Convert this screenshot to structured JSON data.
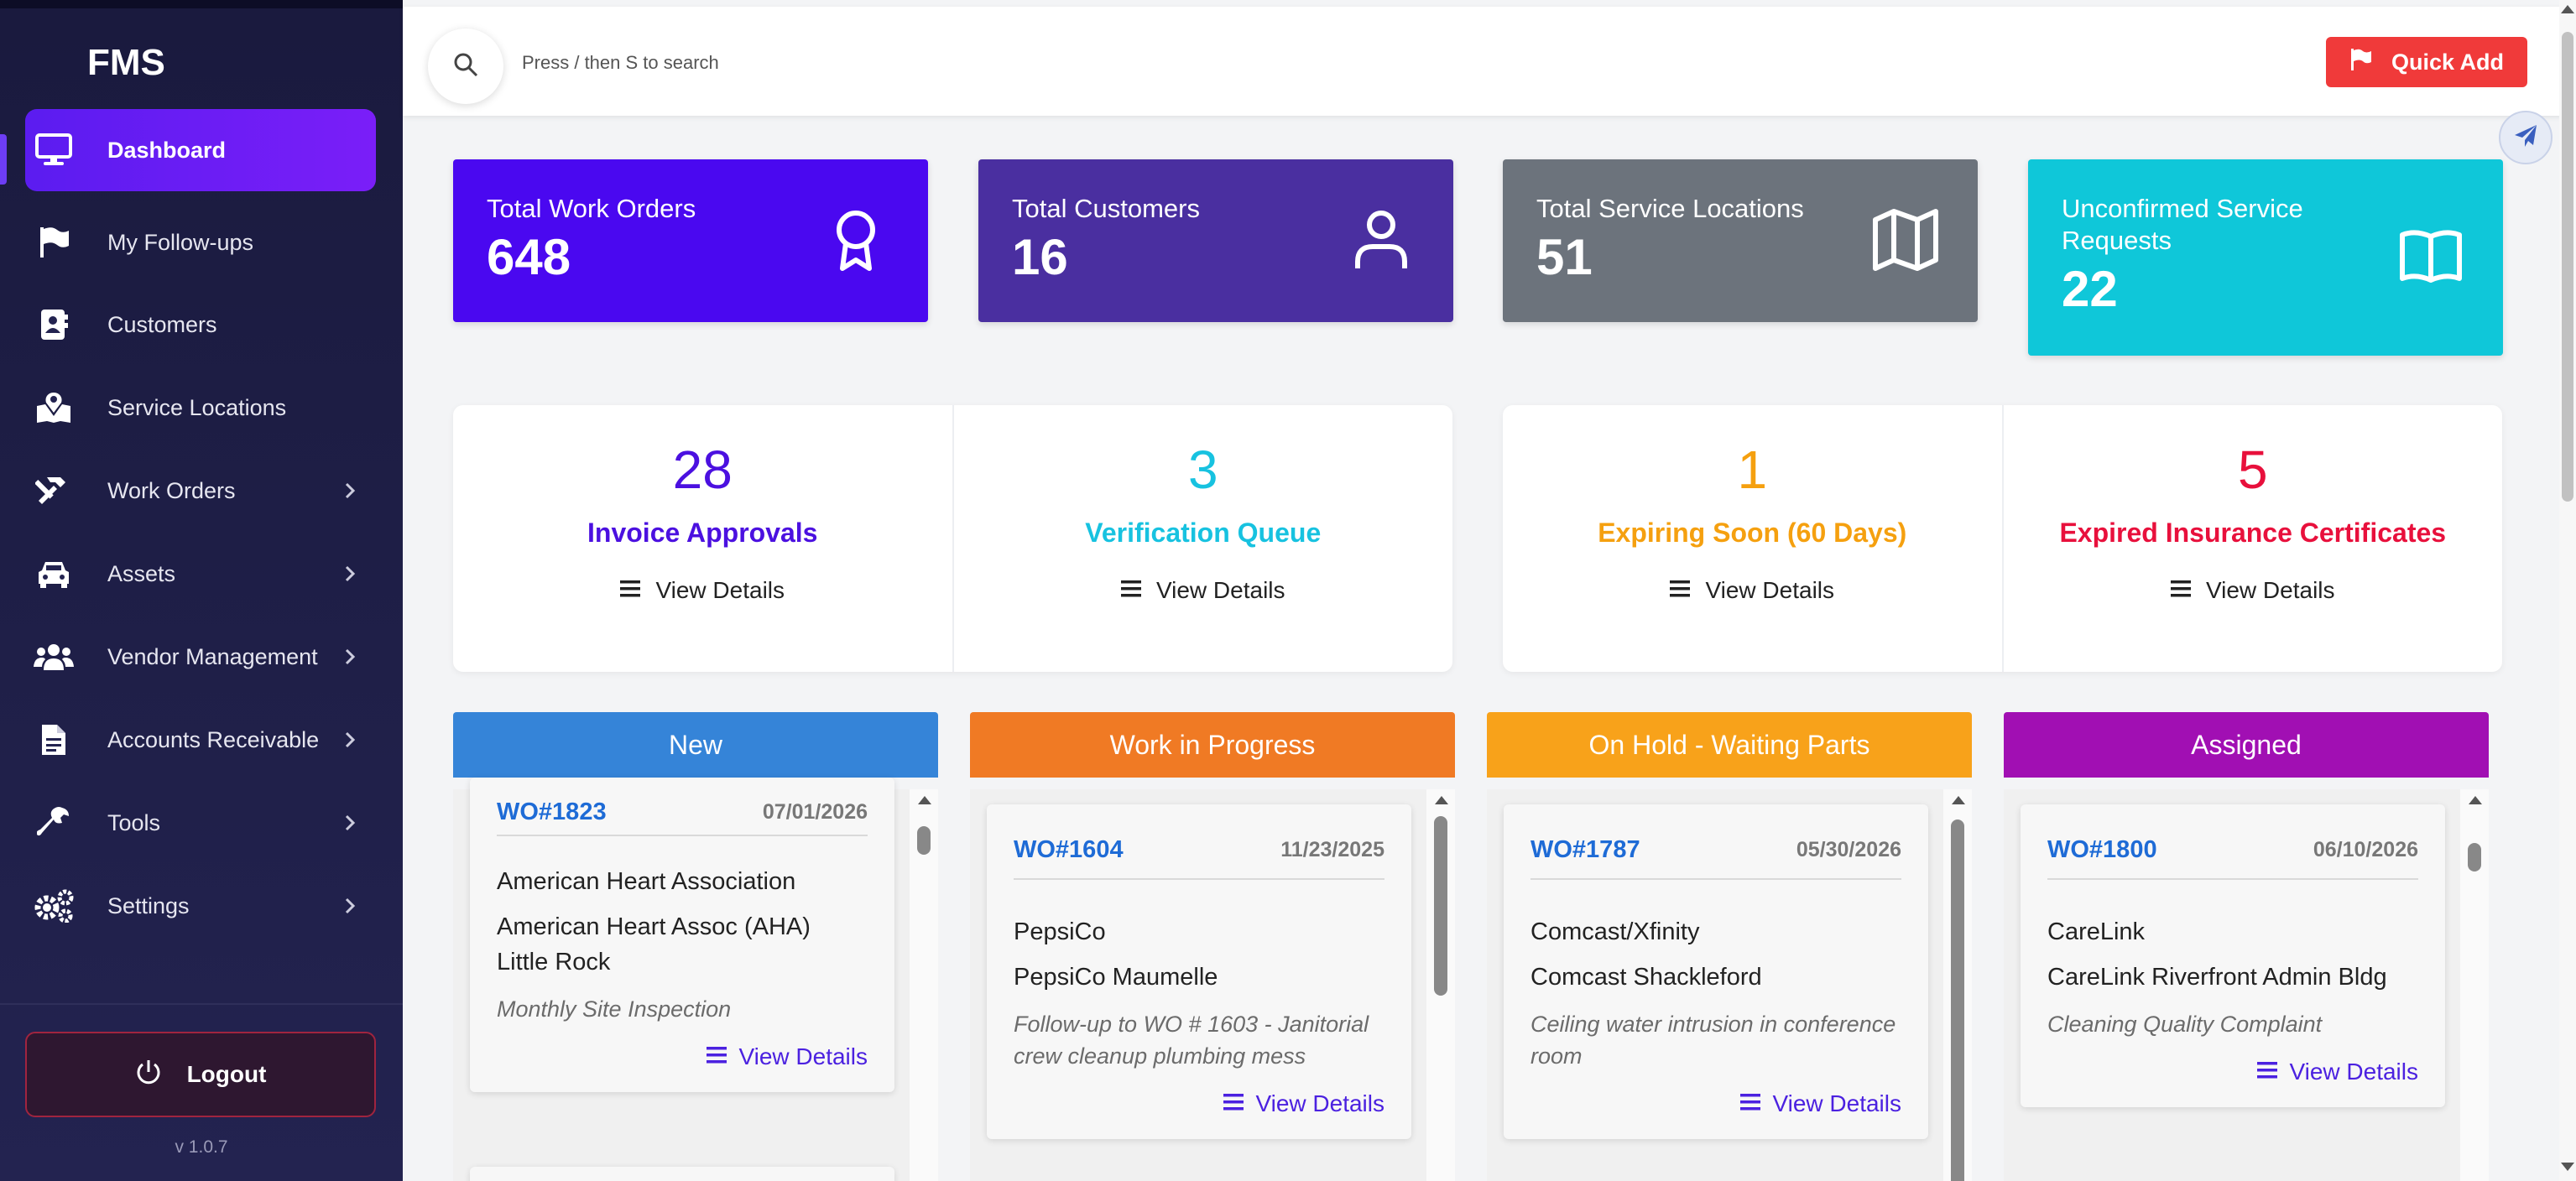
{
  "app": {
    "title": "FMS",
    "version": "v 1.0.7"
  },
  "sidebar": {
    "items": [
      {
        "label": "Dashboard",
        "icon": "monitor-icon",
        "active": true,
        "has_submenu": false
      },
      {
        "label": "My Follow-ups",
        "icon": "flag-icon",
        "active": false,
        "has_submenu": false
      },
      {
        "label": "Customers",
        "icon": "address-book-icon",
        "active": false,
        "has_submenu": false
      },
      {
        "label": "Service Locations",
        "icon": "map-location-icon",
        "active": false,
        "has_submenu": false
      },
      {
        "label": "Work Orders",
        "icon": "hammer-icon",
        "active": false,
        "has_submenu": true
      },
      {
        "label": "Assets",
        "icon": "car-icon",
        "active": false,
        "has_submenu": true
      },
      {
        "label": "Vendor Management",
        "icon": "users-icon",
        "active": false,
        "has_submenu": true
      },
      {
        "label": "Accounts Receivable",
        "icon": "invoice-icon",
        "active": false,
        "has_submenu": true
      },
      {
        "label": "Tools",
        "icon": "wrench-icon",
        "active": false,
        "has_submenu": true
      },
      {
        "label": "Settings",
        "icon": "gears-icon",
        "active": false,
        "has_submenu": true
      }
    ],
    "logout_label": "Logout"
  },
  "topbar": {
    "search_placeholder": "Press / then S to search",
    "quick_add_label": "Quick Add"
  },
  "stats": [
    {
      "title": "Total Work Orders",
      "value": "648",
      "color": "#4a08f0",
      "icon": "award-icon"
    },
    {
      "title": "Total Customers",
      "value": "16",
      "color": "#4a2fa0",
      "icon": "user-icon"
    },
    {
      "title": "Total Service Locations",
      "value": "51",
      "color": "#6c737c",
      "icon": "map-icon"
    },
    {
      "title": "Unconfirmed Service Requests",
      "value": "22",
      "color": "#0fc7d9",
      "icon": "book-open-icon"
    }
  ],
  "metrics": [
    {
      "value": "28",
      "label": "Invoice Approvals",
      "color": "#4b10e0",
      "view_label": "View Details"
    },
    {
      "value": "3",
      "label": "Verification Queue",
      "color": "#17c2e0",
      "view_label": "View Details"
    },
    {
      "value": "1",
      "label": "Expiring Soon (60 Days)",
      "color": "#f5a00f",
      "view_label": "View Details"
    },
    {
      "value": "5",
      "label": "Expired Insurance Certificates",
      "color": "#e8103c",
      "view_label": "View Details"
    }
  ],
  "kanban": {
    "columns": [
      {
        "title": "New",
        "color": "#3584d8",
        "card": {
          "id": "WO#1823",
          "date": "07/01/2026",
          "customer": "American Heart Association",
          "location": "American Heart Assoc (AHA) Little Rock",
          "description": "Monthly Site Inspection",
          "view_label": "View Details"
        }
      },
      {
        "title": "Work in Progress",
        "color": "#f07a24",
        "card": {
          "id": "WO#1604",
          "date": "11/23/2025",
          "customer": "PepsiCo",
          "location": "PepsiCo Maumelle",
          "description": "Follow-up to WO # 1603 - Janitorial crew cleanup plumbing mess",
          "view_label": "View Details"
        }
      },
      {
        "title": "On Hold - Waiting Parts",
        "color": "#f8a21a",
        "card": {
          "id": "WO#1787",
          "date": "05/30/2026",
          "customer": "Comcast/Xfinity",
          "location": "Comcast Shackleford",
          "description": "Ceiling water intrusion in conference room",
          "view_label": "View Details"
        }
      },
      {
        "title": "Assigned",
        "color": "#a10fb3",
        "card": {
          "id": "WO#1800",
          "date": "06/10/2026",
          "customer": "CareLink",
          "location": "CareLink Riverfront Admin Bldg",
          "description": "Cleaning Quality Complaint",
          "view_label": "View Details"
        }
      }
    ]
  }
}
